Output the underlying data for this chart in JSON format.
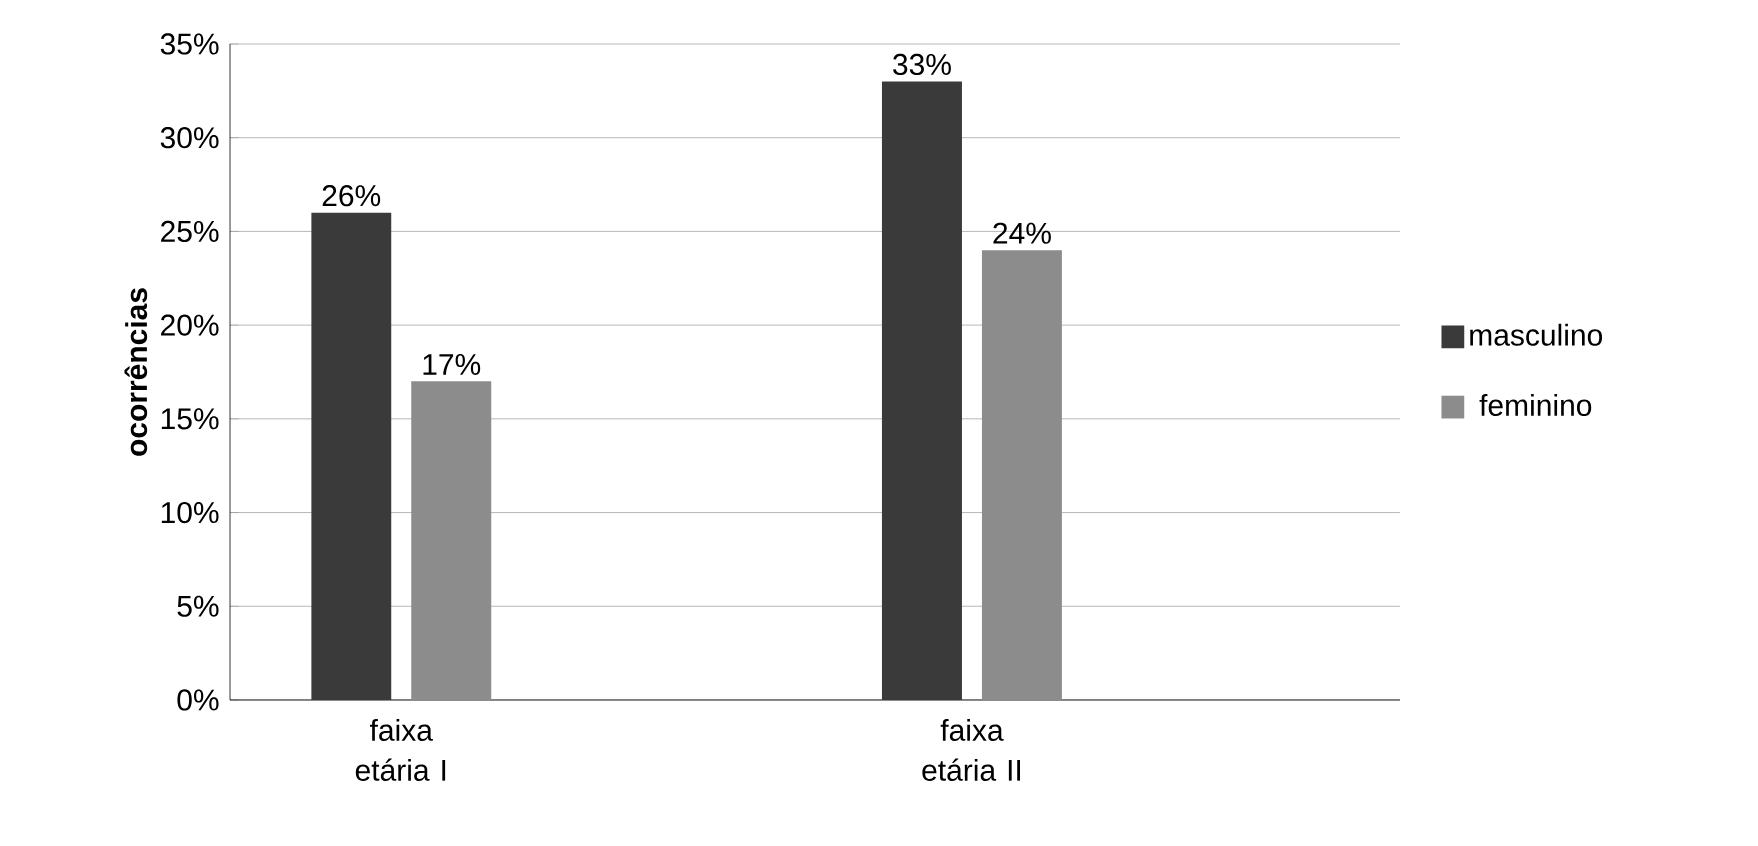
{
  "chart_data": {
    "type": "bar",
    "ylabel": "ocorrências",
    "categories": [
      "faixa etária I",
      "faixa etária II"
    ],
    "series": [
      {
        "name": "masculino",
        "color": "#3a3a3a",
        "values": [
          26,
          33
        ],
        "value_labels": [
          "26%",
          "33%"
        ]
      },
      {
        "name": "feminino",
        "color": "#8c8c8c",
        "values": [
          17,
          24
        ],
        "value_labels": [
          "17%",
          "24%"
        ]
      }
    ],
    "ylim": [
      0,
      35
    ],
    "yticks": [
      {
        "value": 0,
        "label": "0%"
      },
      {
        "value": 5,
        "label": "5%"
      },
      {
        "value": 10,
        "label": "10%"
      },
      {
        "value": 15,
        "label": "15%"
      },
      {
        "value": 20,
        "label": "20%"
      },
      {
        "value": 25,
        "label": "25%"
      },
      {
        "value": 30,
        "label": "30%"
      },
      {
        "value": 35,
        "label": "35%"
      }
    ],
    "grid": "y",
    "legend": "right"
  }
}
